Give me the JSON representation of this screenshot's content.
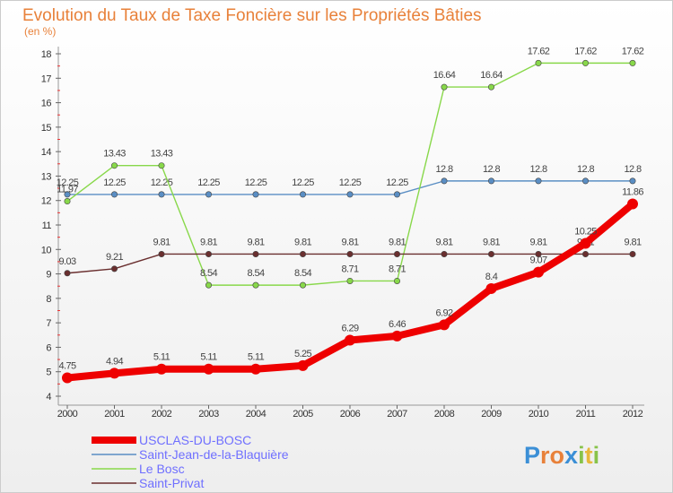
{
  "chart_data": {
    "type": "line",
    "title": "Evolution du Taux de Taxe Foncière sur les Propriétés Bâties",
    "subtitle": "(en %)",
    "xlabel": "",
    "ylabel": "",
    "ylim": [
      4,
      18
    ],
    "grid": false,
    "legend_position": "bottom-left",
    "categories": [
      "2000",
      "2001",
      "2002",
      "2003",
      "2004",
      "2005",
      "2006",
      "2007",
      "2008",
      "2009",
      "2010",
      "2011",
      "2012"
    ],
    "yticks": [
      "4",
      "5",
      "6",
      "7",
      "8",
      "9",
      "10",
      "11",
      "12",
      "13",
      "14",
      "15",
      "16",
      "17",
      "18"
    ],
    "series": [
      {
        "name": "USCLAS-DU-BOSC",
        "color": "#ee0000",
        "values": [
          4.75,
          4.94,
          5.11,
          5.11,
          5.11,
          5.25,
          6.29,
          6.46,
          6.92,
          8.4,
          9.07,
          10.25,
          11.86
        ],
        "labels": [
          "4.75",
          "4.94",
          "5.11",
          "5.11",
          "5.11",
          "5.25",
          "6.29",
          "6.46",
          "6.92",
          "8.4",
          "9.07",
          "10.25",
          "11.86"
        ]
      },
      {
        "name": "Saint-Jean-de-la-Blaquière",
        "color": "#5a8ec4",
        "values": [
          12.25,
          12.25,
          12.25,
          12.25,
          12.25,
          12.25,
          12.25,
          12.25,
          12.8,
          12.8,
          12.8,
          12.8,
          12.8
        ],
        "labels": [
          "12.25",
          "12.25",
          "12.25",
          "12.25",
          "12.25",
          "12.25",
          "12.25",
          "12.25",
          "12.8",
          "12.8",
          "12.8",
          "12.8",
          "12.8"
        ]
      },
      {
        "name": "Le Bosc",
        "color": "#88d84a",
        "values": [
          11.97,
          13.43,
          13.43,
          8.54,
          8.54,
          8.54,
          8.71,
          8.71,
          16.64,
          16.64,
          17.62,
          17.62,
          17.62
        ],
        "labels": [
          "11.97",
          "13.43",
          "13.43",
          "8.54",
          "8.54",
          "8.54",
          "8.71",
          "8.71",
          "16.64",
          "16.64",
          "17.62",
          "17.62",
          "17.62"
        ]
      },
      {
        "name": "Saint-Privat",
        "color": "#6a2f2f",
        "values": [
          9.03,
          9.21,
          9.81,
          9.81,
          9.81,
          9.81,
          9.81,
          9.81,
          9.81,
          9.81,
          9.81,
          9.81,
          9.81
        ],
        "labels": [
          "9.03",
          "9.21",
          "9.81",
          "9.81",
          "9.81",
          "9.81",
          "9.81",
          "9.81",
          "9.81",
          "9.81",
          "9.81",
          "9.81",
          "9.81"
        ]
      }
    ]
  },
  "logo": {
    "text": "Proxiti",
    "letters": [
      "P",
      "r",
      "o",
      "x",
      "i",
      "t",
      "i"
    ],
    "colors": [
      "#3b8fd6",
      "#e8813a",
      "#e8813a",
      "#3b8fd6",
      "#88c34a",
      "#e8b83a",
      "#88c34a"
    ]
  }
}
